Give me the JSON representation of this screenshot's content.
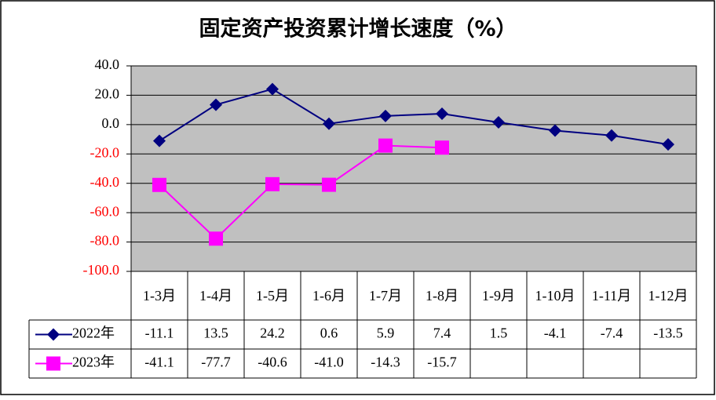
{
  "chart_data": {
    "type": "line",
    "title": "固定资产投资累计增长速度（%）",
    "categories": [
      "1-3月",
      "1-4月",
      "1-5月",
      "1-6月",
      "1-7月",
      "1-8月",
      "1-9月",
      "1-10月",
      "1-11月",
      "1-12月"
    ],
    "series": [
      {
        "name": "2022年",
        "color": "#000080",
        "marker": "diamond",
        "values": [
          -11.1,
          13.5,
          24.2,
          0.6,
          5.9,
          7.4,
          1.5,
          -4.1,
          -7.4,
          -13.5
        ],
        "value_labels": [
          "-11.1",
          "13.5",
          "24.2",
          "0.6",
          "5.9",
          "7.4",
          "1.5",
          "-4.1",
          "-7.4",
          "-13.5"
        ]
      },
      {
        "name": "2023年",
        "color": "#ff00ff",
        "marker": "square",
        "values": [
          -41.1,
          -77.7,
          -40.6,
          -41.0,
          -14.3,
          -15.7,
          null,
          null,
          null,
          null
        ],
        "value_labels": [
          "-41.1",
          "-77.7",
          "-40.6",
          "-41.0",
          "-14.3",
          "-15.7",
          null,
          null,
          null,
          null
        ]
      }
    ],
    "ylim": [
      -100,
      40
    ],
    "yticks": [
      {
        "value": -100,
        "label": "-100.0"
      },
      {
        "value": -80,
        "label": "-80.0"
      },
      {
        "value": -60,
        "label": "-60.0"
      },
      {
        "value": -40,
        "label": "-40.0"
      },
      {
        "value": -20,
        "label": "-20.0"
      },
      {
        "value": 0,
        "label": "0.0"
      },
      {
        "value": 20,
        "label": "20.0"
      },
      {
        "value": 40,
        "label": "40.0"
      }
    ],
    "grid": true,
    "plot_background": "#c0c0c0",
    "negative_tick_color": "#ff0000",
    "data_table": true
  }
}
